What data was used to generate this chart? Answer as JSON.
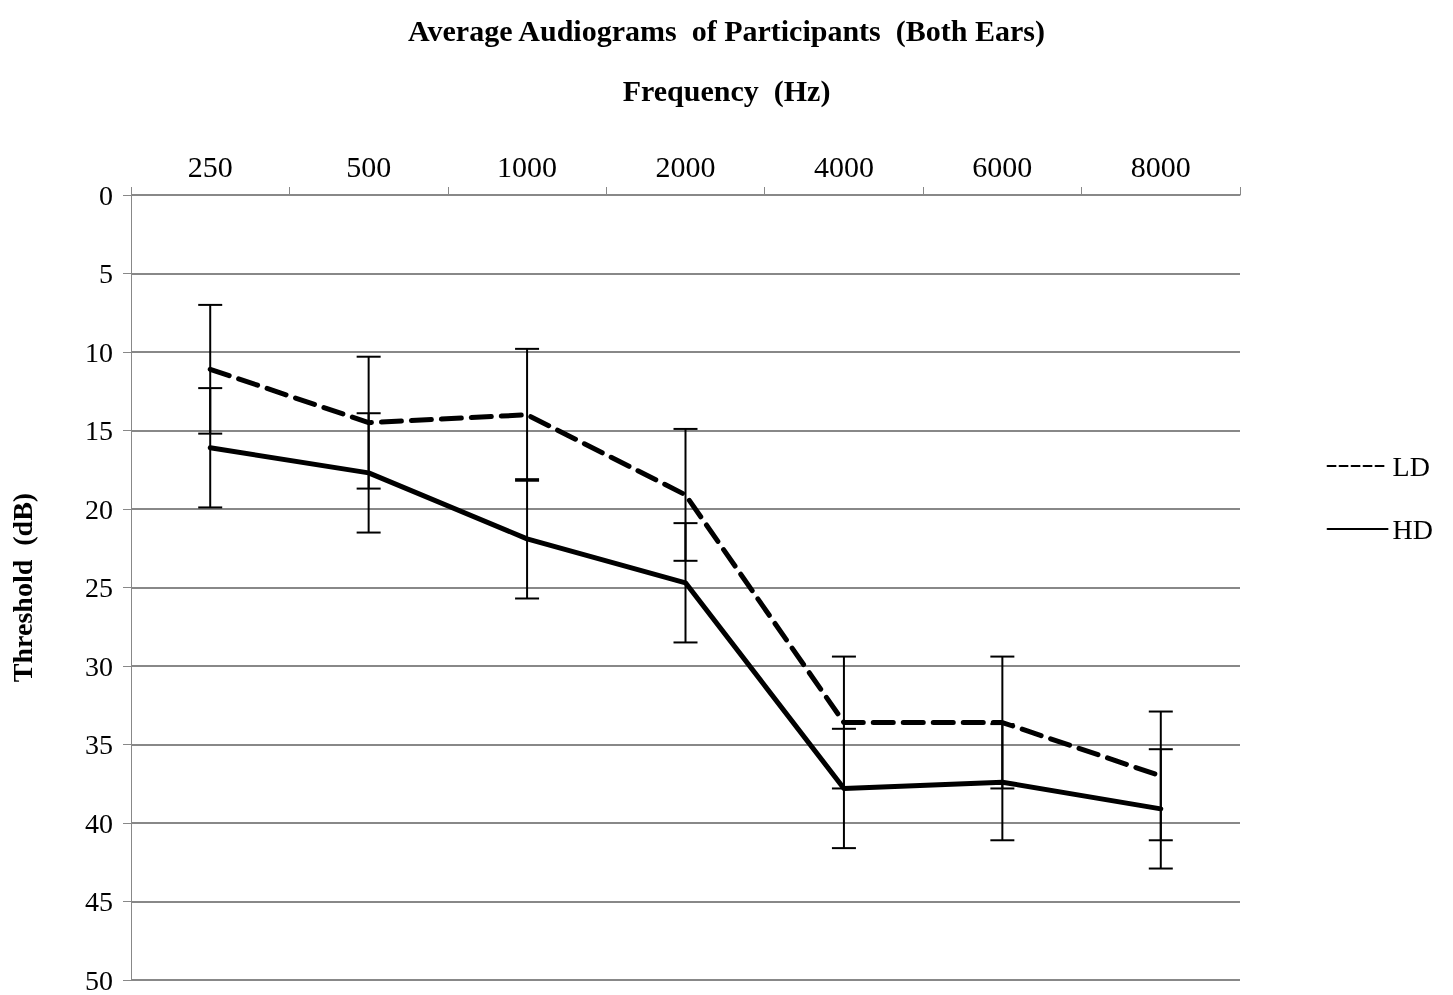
{
  "chart_data": {
    "type": "line",
    "title": "Average Audiograms  of Participants  (Both Ears)",
    "xlabel": "Frequency  (Hz)",
    "ylabel": "Threshold  (dB)",
    "categories": [
      "250",
      "500",
      "1000",
      "2000",
      "4000",
      "6000",
      "8000"
    ],
    "series": [
      {
        "name": "LD",
        "color": "#000000",
        "line_style": "dashed",
        "values": [
          11.1,
          14.5,
          14.0,
          19.1,
          33.6,
          33.6,
          37.0
        ],
        "errors": [
          4.1,
          4.2,
          4.2,
          4.2,
          4.2,
          4.2,
          4.1
        ]
      },
      {
        "name": "HD",
        "color": "#000000",
        "line_style": "solid",
        "values": [
          16.1,
          17.7,
          21.9,
          24.7,
          37.8,
          37.4,
          39.1
        ],
        "errors": [
          3.8,
          3.8,
          3.8,
          3.8,
          3.8,
          3.7,
          3.8
        ]
      }
    ],
    "ylim": [
      50,
      0
    ],
    "yticks": [
      0,
      5,
      10,
      15,
      20,
      25,
      30,
      35,
      40,
      45,
      50
    ],
    "grid": "y",
    "legend": "right",
    "marker": "none"
  }
}
